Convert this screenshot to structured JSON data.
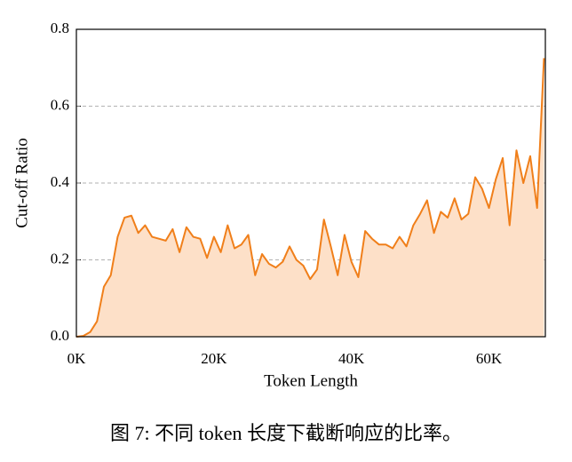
{
  "chart_data": {
    "type": "line",
    "x_label": "Token Length",
    "y_label": "Cut-off Ratio",
    "caption": "图 7: 不同 token 长度下截断响应的比率。",
    "x": [
      0,
      1,
      2,
      3,
      4,
      5,
      6,
      7,
      8,
      9,
      10,
      11,
      12,
      13,
      14,
      15,
      16,
      17,
      18,
      19,
      20,
      21,
      22,
      23,
      24,
      25,
      26,
      27,
      28,
      29,
      30,
      31,
      32,
      33,
      34,
      35,
      36,
      37,
      38,
      39,
      40,
      41,
      42,
      43,
      44,
      45,
      46,
      47,
      48,
      49,
      50,
      51,
      52,
      53,
      54,
      55,
      56,
      57,
      58,
      59,
      60,
      61,
      62,
      63,
      64,
      65,
      66,
      67,
      68
    ],
    "series": [
      {
        "name": "Cut-off Ratio",
        "color": "#f07f1a",
        "fill": "#fde0c8",
        "values": [
          0.0,
          0.002,
          0.012,
          0.04,
          0.13,
          0.16,
          0.26,
          0.31,
          0.315,
          0.27,
          0.29,
          0.26,
          0.255,
          0.25,
          0.28,
          0.22,
          0.285,
          0.26,
          0.255,
          0.205,
          0.26,
          0.22,
          0.29,
          0.23,
          0.24,
          0.265,
          0.16,
          0.215,
          0.19,
          0.18,
          0.195,
          0.235,
          0.2,
          0.185,
          0.15,
          0.175,
          0.305,
          0.235,
          0.16,
          0.265,
          0.195,
          0.155,
          0.275,
          0.255,
          0.24,
          0.24,
          0.23,
          0.26,
          0.235,
          0.29,
          0.32,
          0.355,
          0.27,
          0.325,
          0.31,
          0.36,
          0.305,
          0.32,
          0.415,
          0.385,
          0.335,
          0.41,
          0.465,
          0.29,
          0.485,
          0.4,
          0.47,
          0.335,
          0.725
        ]
      }
    ],
    "xlim": [
      0,
      68.2
    ],
    "xticks": [
      {
        "value": 0,
        "label": "0K"
      },
      {
        "value": 20,
        "label": "20K"
      },
      {
        "value": 40,
        "label": "40K"
      },
      {
        "value": 60,
        "label": "60K"
      }
    ],
    "ylim": [
      0,
      0.8
    ],
    "yticks": [
      {
        "value": 0,
        "label": "0.0"
      },
      0.2,
      0.4,
      0.6,
      0.8
    ],
    "grid": true
  }
}
